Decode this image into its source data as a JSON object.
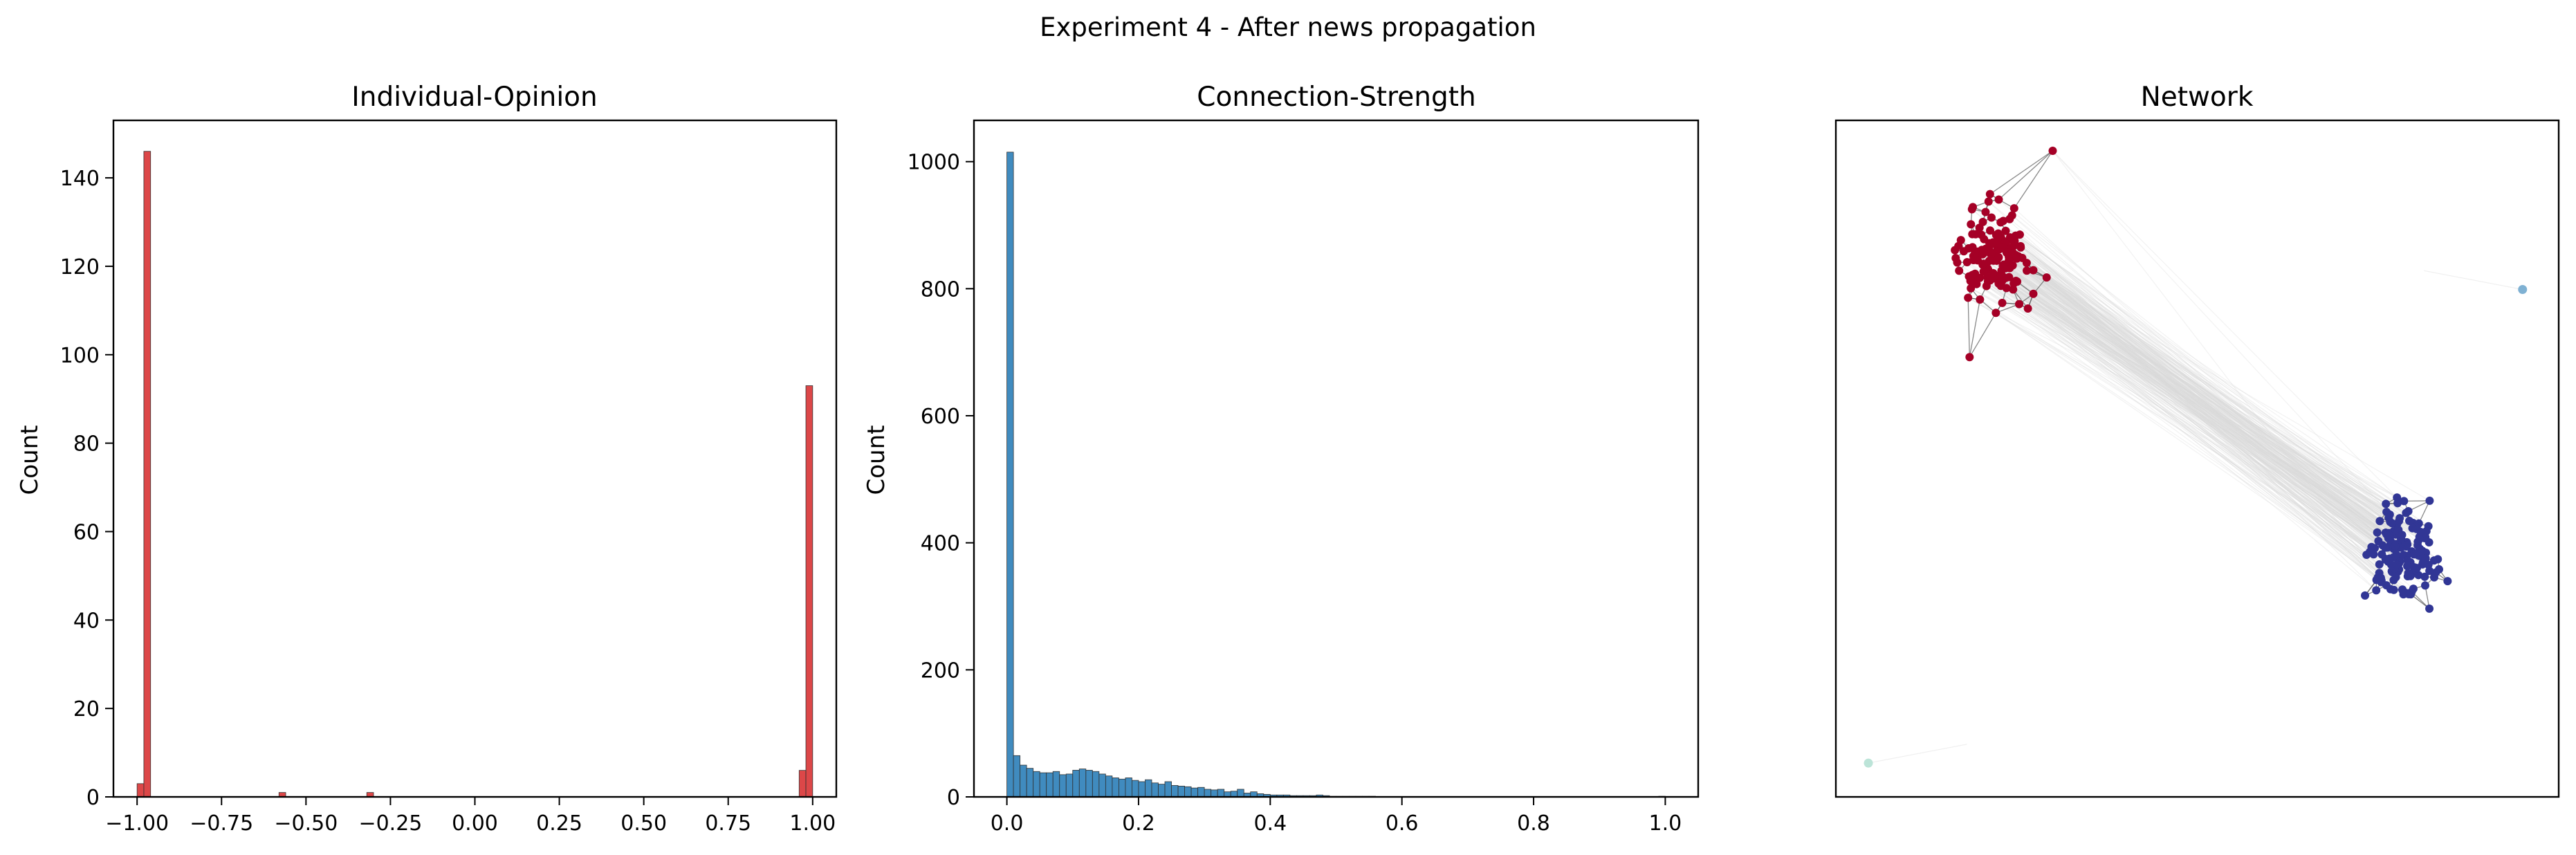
{
  "figure": {
    "title": "Experiment 4 - After news propagation"
  },
  "chart_data": [
    {
      "type": "bar",
      "title": "Individual-Opinion",
      "xlabel": "",
      "ylabel": "Count",
      "xlim": [
        -1.07,
        1.07
      ],
      "ylim": [
        0,
        153
      ],
      "xticks": [
        -1.0,
        -0.75,
        -0.5,
        -0.25,
        0.0,
        0.25,
        0.5,
        0.75,
        1.0
      ],
      "xtick_labels": [
        "−1.00",
        "−0.75",
        "−0.50",
        "−0.25",
        "0.00",
        "0.25",
        "0.50",
        "0.75",
        "1.00"
      ],
      "yticks": [
        0,
        20,
        40,
        60,
        80,
        100,
        120,
        140
      ],
      "ytick_labels": [
        "0",
        "20",
        "40",
        "60",
        "80",
        "100",
        "120",
        "140"
      ],
      "bin_width": 0.02,
      "bar_color": "#d62728",
      "bins": [
        {
          "x": -1.0,
          "count": 3
        },
        {
          "x": -0.98,
          "count": 146
        },
        {
          "x": -0.58,
          "count": 1
        },
        {
          "x": -0.32,
          "count": 1
        },
        {
          "x": 0.96,
          "count": 6
        },
        {
          "x": 0.98,
          "count": 93
        }
      ]
    },
    {
      "type": "bar",
      "title": "Connection-Strength",
      "xlabel": "",
      "ylabel": "Count",
      "xlim": [
        -0.05,
        1.05
      ],
      "ylim": [
        0,
        1065
      ],
      "xticks": [
        0.0,
        0.2,
        0.4,
        0.6,
        0.8,
        1.0
      ],
      "xtick_labels": [
        "0.0",
        "0.2",
        "0.4",
        "0.6",
        "0.8",
        "1.0"
      ],
      "yticks": [
        0,
        200,
        400,
        600,
        800,
        1000
      ],
      "ytick_labels": [
        "0",
        "200",
        "400",
        "600",
        "800",
        "1000"
      ],
      "bin_width": 0.01,
      "bar_color": "#1f77b4",
      "counts": [
        1015,
        65,
        50,
        45,
        40,
        38,
        38,
        40,
        35,
        36,
        42,
        44,
        42,
        40,
        36,
        33,
        30,
        28,
        30,
        26,
        24,
        27,
        22,
        20,
        24,
        18,
        17,
        16,
        14,
        15,
        12,
        11,
        12,
        8,
        9,
        12,
        6,
        8,
        5,
        4,
        3,
        3,
        3,
        2,
        2,
        2,
        2,
        3,
        2,
        1,
        1,
        1,
        1,
        1,
        1,
        1,
        0,
        0,
        0,
        0,
        0,
        0,
        0,
        0,
        0,
        0,
        0,
        0,
        0,
        0,
        0,
        0,
        0,
        0,
        0,
        0,
        0,
        0,
        0,
        0,
        0,
        0,
        0,
        0,
        0,
        0,
        0,
        0,
        0,
        0,
        0,
        0,
        0,
        0,
        0,
        0,
        0,
        0,
        0,
        1
      ]
    },
    {
      "type": "scatter",
      "title": "Network",
      "xlabel": "",
      "ylabel": "",
      "xlim": [
        0,
        1
      ],
      "ylim": [
        0,
        1
      ],
      "axis_ticks": false,
      "clusters": [
        {
          "color": "#a50026",
          "center": [
            0.22,
            0.8
          ],
          "spread": [
            0.055,
            0.07
          ],
          "count": 146
        },
        {
          "color": "#313695",
          "center": [
            0.78,
            0.36
          ],
          "spread": [
            0.055,
            0.068
          ],
          "count": 154
        }
      ],
      "nodes": [
        {
          "color": "#a50026",
          "x": 0.3,
          "y": 0.955
        },
        {
          "color": "#a50026",
          "x": 0.185,
          "y": 0.65
        },
        {
          "color": "#7fb1d3",
          "x": 0.95,
          "y": 0.75
        },
        {
          "color": "#bce4d8",
          "x": 0.045,
          "y": 0.05
        }
      ],
      "edge_color": "#555555",
      "cross_edge_color": "#d9d9d9"
    }
  ]
}
